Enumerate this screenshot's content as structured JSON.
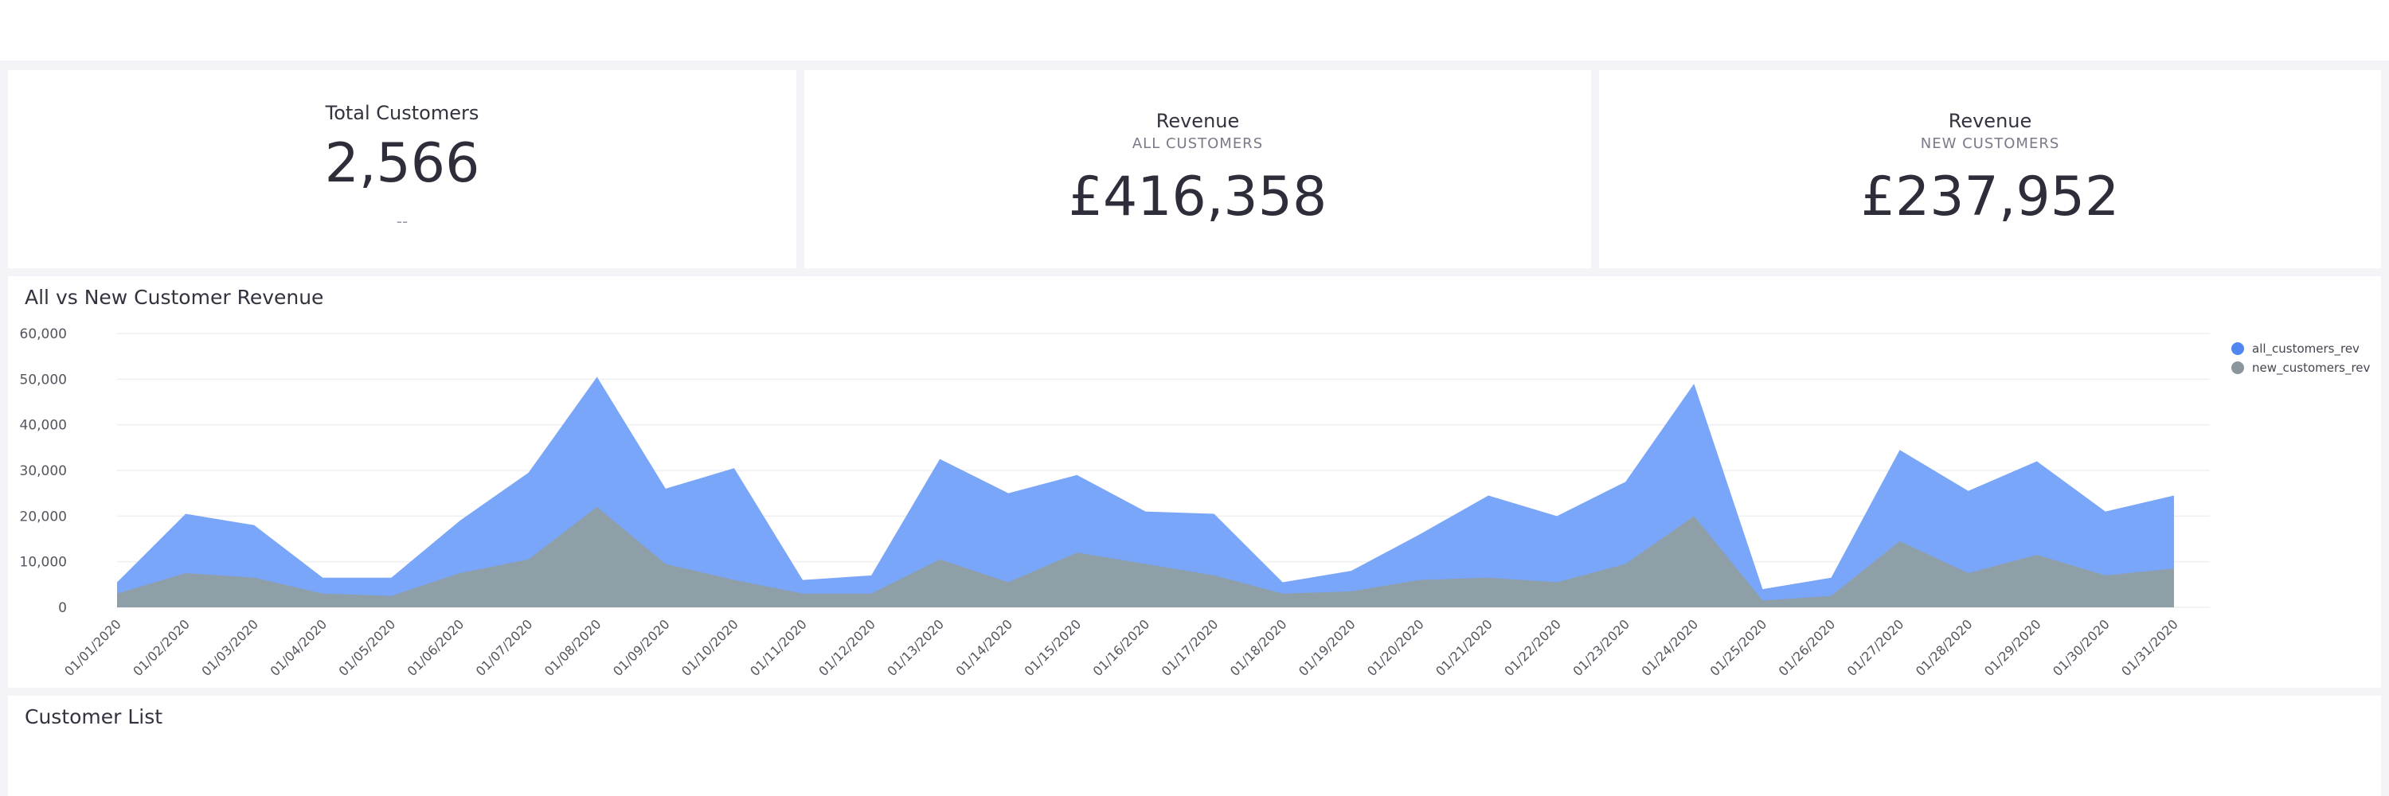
{
  "kpis": [
    {
      "title": "Total Customers",
      "value": "2,566",
      "footer": "--"
    },
    {
      "title": "Revenue",
      "subtitle": "ALL CUSTOMERS",
      "value": "£416,358"
    },
    {
      "title": "Revenue",
      "subtitle": "NEW CUSTOMERS",
      "value": "£237,952"
    }
  ],
  "chart_data": {
    "type": "area",
    "title": "All vs New Customer Revenue",
    "categories": [
      "01/01/2020",
      "01/02/2020",
      "01/03/2020",
      "01/04/2020",
      "01/05/2020",
      "01/06/2020",
      "01/07/2020",
      "01/08/2020",
      "01/09/2020",
      "01/10/2020",
      "01/11/2020",
      "01/12/2020",
      "01/13/2020",
      "01/14/2020",
      "01/15/2020",
      "01/16/2020",
      "01/17/2020",
      "01/18/2020",
      "01/19/2020",
      "01/20/2020",
      "01/21/2020",
      "01/22/2020",
      "01/23/2020",
      "01/24/2020",
      "01/25/2020",
      "01/26/2020",
      "01/27/2020",
      "01/28/2020",
      "01/29/2020",
      "01/30/2020",
      "01/31/2020"
    ],
    "series": [
      {
        "name": "all_customers_rev",
        "color": "#7aa6f9",
        "legend_color": "#4f86f0",
        "values": [
          5500,
          20500,
          18000,
          6500,
          6500,
          19000,
          29500,
          50500,
          26000,
          30500,
          6000,
          7000,
          32500,
          25000,
          29000,
          21000,
          20500,
          5500,
          8000,
          16000,
          24500,
          20000,
          27500,
          49000,
          4000,
          6500,
          34500,
          25500,
          32000,
          21000,
          24500
        ]
      },
      {
        "name": "new_customers_rev",
        "color": "#8f9fa8",
        "legend_color": "#8a969c",
        "values": [
          3000,
          7500,
          6500,
          3000,
          2500,
          7500,
          10500,
          22000,
          9500,
          6000,
          3000,
          3000,
          10500,
          5500,
          12000,
          9500,
          7000,
          3000,
          3500,
          6000,
          6500,
          5500,
          9500,
          20000,
          1500,
          2500,
          14500,
          7500,
          11500,
          7000,
          8500
        ]
      }
    ],
    "ylim": [
      0,
      60000
    ],
    "yticks": [
      0,
      {
        "value": 10000,
        "label": "10,000"
      },
      {
        "value": 20000,
        "label": "20,000"
      },
      {
        "value": 30000,
        "label": "30,000"
      },
      {
        "value": 40000,
        "label": "40,000"
      },
      {
        "value": 50000,
        "label": "50,000"
      },
      {
        "value": 60000,
        "label": "60,000"
      }
    ],
    "grid": true,
    "legend": "top-right"
  },
  "customer_list": {
    "title": "Customer List"
  }
}
